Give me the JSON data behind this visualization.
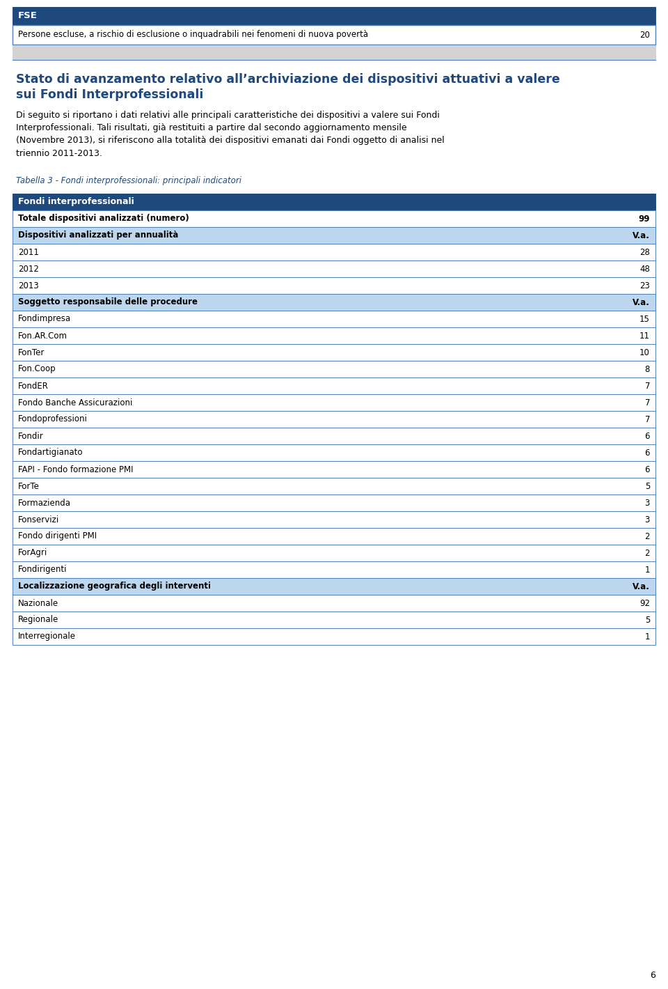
{
  "header_fse_text": "FSE",
  "header_fse_bg": "#1F497D",
  "header_fse_color": "#FFFFFF",
  "header_row_text": "Persone escluse, a rischio di esclusione o inquadrabili nei fenomeni di nuova povertà",
  "header_row_value": "20",
  "title_text_line1": "Stato di avanzamento relativo all’archiviazione dei dispositivi attuativi a valere",
  "title_text_line2": "sui Fondi Interprofessionali",
  "title_color": "#1F497D",
  "subtitle_lines": [
    "Di seguito si riportano i dati relativi alle principali caratteristiche dei dispositivi a valere sui Fondi",
    "Interprofessionali. Tali risultati, già restituiti a partire dal secondo aggiornamento mensile",
    "(Novembre 2013), si riferiscono alla totalità dei dispositivi emanati dai Fondi oggetto di analisi nel",
    "triennio 2011-2013."
  ],
  "table_caption": "Tabella 3 - Fondi interprofessionali: principali indicatori",
  "table_caption_color": "#1F497D",
  "table_header_text": "Fondi interprofessionali",
  "dark_blue": "#1F497D",
  "light_blue": "#BDD7EE",
  "white": "#FFFFFF",
  "border_color": "#4F81BD",
  "gray_spacer": "#D3D3D3",
  "text_dark": "#000000",
  "rows": [
    {
      "label": "Totale dispositivi analizzati (numero)",
      "value": "99",
      "type": "bold_white"
    },
    {
      "label": "Dispositivi analizzati per annualità",
      "value": "V.a.",
      "type": "section"
    },
    {
      "label": "2011",
      "value": "28",
      "type": "normal"
    },
    {
      "label": "2012",
      "value": "48",
      "type": "normal"
    },
    {
      "label": "2013",
      "value": "23",
      "type": "normal"
    },
    {
      "label": "Soggetto responsabile delle procedure",
      "value": "V.a.",
      "type": "section"
    },
    {
      "label": "Fondimpresa",
      "value": "15",
      "type": "normal"
    },
    {
      "label": "Fon.AR.Com",
      "value": "11",
      "type": "normal"
    },
    {
      "label": "FonTer",
      "value": "10",
      "type": "normal"
    },
    {
      "label": "Fon.Coop",
      "value": "8",
      "type": "normal"
    },
    {
      "label": "FondER",
      "value": "7",
      "type": "normal"
    },
    {
      "label": "Fondo Banche Assicurazioni",
      "value": "7",
      "type": "normal"
    },
    {
      "label": "Fondoprofessioni",
      "value": "7",
      "type": "normal"
    },
    {
      "label": "Fondir",
      "value": "6",
      "type": "normal"
    },
    {
      "label": "Fondartigianato",
      "value": "6",
      "type": "normal"
    },
    {
      "label": "FAPI - Fondo formazione PMI",
      "value": "6",
      "type": "normal"
    },
    {
      "label": "ForTe",
      "value": "5",
      "type": "normal"
    },
    {
      "label": "Formazienda",
      "value": "3",
      "type": "normal"
    },
    {
      "label": "Fonservizi",
      "value": "3",
      "type": "normal"
    },
    {
      "label": "Fondo dirigenti PMI",
      "value": "2",
      "type": "normal"
    },
    {
      "label": "ForAgri",
      "value": "2",
      "type": "normal"
    },
    {
      "label": "Fondirigenti",
      "value": "1",
      "type": "normal"
    },
    {
      "label": "Localizzazione geografica degli interventi",
      "value": "V.a.",
      "type": "section"
    },
    {
      "label": "Nazionale",
      "value": "92",
      "type": "normal"
    },
    {
      "label": "Regionale",
      "value": "5",
      "type": "normal"
    },
    {
      "label": "Interregionale",
      "value": "1",
      "type": "normal"
    }
  ],
  "page_number": "6"
}
